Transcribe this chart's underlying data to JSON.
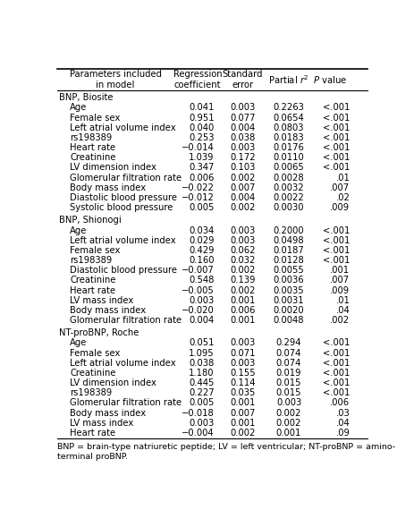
{
  "header_col0": "Parameters included\nin model",
  "header_col1": "Regression\ncoefficient",
  "header_col2": "Standard\nerror",
  "header_col3_part1": "Partial ",
  "header_col3_part2": "r",
  "header_col3_part3": "²",
  "header_col4_part1": "P",
  "header_col4_part2": " value",
  "sections": [
    {
      "title": "BNP, Biosite",
      "rows": [
        [
          "Age",
          "0.041",
          "0.003",
          "0.2263",
          "<.001"
        ],
        [
          "Female sex",
          "0.951",
          "0.077",
          "0.0654",
          "<.001"
        ],
        [
          "Left atrial volume index",
          "0.040",
          "0.004",
          "0.0803",
          "<.001"
        ],
        [
          "rs198389",
          "0.253",
          "0.038",
          "0.0183",
          "<.001"
        ],
        [
          "Heart rate",
          "−0.014",
          "0.003",
          "0.0176",
          "<.001"
        ],
        [
          "Creatinine",
          "1.039",
          "0.172",
          "0.0110",
          "<.001"
        ],
        [
          "LV dimension index",
          "0.347",
          "0.103",
          "0.0065",
          "<.001"
        ],
        [
          "Glomerular filtration rate",
          "0.006",
          "0.002",
          "0.0028",
          ".01"
        ],
        [
          "Body mass index",
          "−0.022",
          "0.007",
          "0.0032",
          ".007"
        ],
        [
          "Diastolic blood pressure",
          "−0.012",
          "0.004",
          "0.0022",
          ".02"
        ],
        [
          "Systolic blood pressure",
          "0.005",
          "0.002",
          "0.0030",
          ".009"
        ]
      ]
    },
    {
      "title": "BNP, Shionogi",
      "rows": [
        [
          "Age",
          "0.034",
          "0.003",
          "0.2000",
          "<.001"
        ],
        [
          "Left atrial volume index",
          "0.029",
          "0.003",
          "0.0498",
          "<.001"
        ],
        [
          "Female sex",
          "0.429",
          "0.062",
          "0.0187",
          "<.001"
        ],
        [
          "rs198389",
          "0.160",
          "0.032",
          "0.0128",
          "<.001"
        ],
        [
          "Diastolic blood pressure",
          "−0.007",
          "0.002",
          "0.0055",
          ".001"
        ],
        [
          "Creatinine",
          "0.548",
          "0.139",
          "0.0036",
          ".007"
        ],
        [
          "Heart rate",
          "−0.005",
          "0.002",
          "0.0035",
          ".009"
        ],
        [
          "LV mass index",
          "0.003",
          "0.001",
          "0.0031",
          ".01"
        ],
        [
          "Body mass index",
          "−0.020",
          "0.006",
          "0.0020",
          ".04"
        ],
        [
          "Glomerular filtration rate",
          "0.004",
          "0.001",
          "0.0048",
          ".002"
        ]
      ]
    },
    {
      "title": "NT-proBNP, Roche",
      "rows": [
        [
          "Age",
          "0.051",
          "0.003",
          "0.294",
          "<.001"
        ],
        [
          "Female sex",
          "1.095",
          "0.071",
          "0.074",
          "<.001"
        ],
        [
          "Left atrial volume index",
          "0.038",
          "0.003",
          "0.074",
          "<.001"
        ],
        [
          "Creatinine",
          "1.180",
          "0.155",
          "0.019",
          "<.001"
        ],
        [
          "LV dimension index",
          "0.445",
          "0.114",
          "0.015",
          "<.001"
        ],
        [
          "rs198389",
          "0.227",
          "0.035",
          "0.015",
          "<.001"
        ],
        [
          "Glomerular filtration rate",
          "0.005",
          "0.001",
          "0.003",
          ".006"
        ],
        [
          "Body mass index",
          "−0.018",
          "0.007",
          "0.002",
          ".03"
        ],
        [
          "LV mass index",
          "0.003",
          "0.001",
          "0.002",
          ".04"
        ],
        [
          "Heart rate",
          "−0.004",
          "0.002",
          "0.001",
          ".09"
        ]
      ]
    }
  ],
  "footnote": "BNP = brain-type natriuretic peptide; LV = left ventricular; NT-proBNP = amino-\nterminal proBNP.",
  "body_fontsize": 7.2,
  "header_fontsize": 7.2,
  "footnote_fontsize": 6.8
}
